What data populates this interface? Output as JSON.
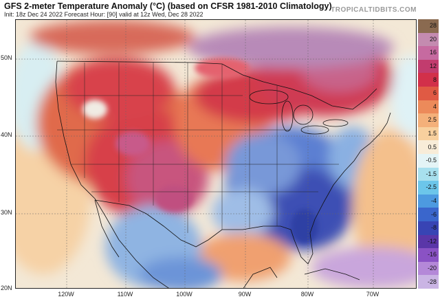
{
  "header": {
    "title": "GFS 2-meter Temperature Anomaly (°C) (based on CFSR 1981-2010 Climatology)",
    "subtitle": "Init: 18z Dec 24 2022   Forecast Hour: [90]   valid at 12z Wed, Dec 28 2022",
    "source": "TROPICALTIDBITS.COM"
  },
  "map": {
    "lat_labels": [
      "50N",
      "40N",
      "30N",
      "20N"
    ],
    "lon_labels": [
      "120W",
      "110W",
      "100W",
      "90W",
      "80W",
      "70W"
    ],
    "colors": {
      "deep_cold": "#3a4fb3",
      "cold": "#5f82d4",
      "cool": "#aac4ea",
      "neutral": "#f4efe4",
      "mild": "#f6c38f",
      "warm": "#ea7a52",
      "hot": "#d2364a",
      "very_hot": "#c2457a",
      "extreme": "#a06aa8"
    }
  },
  "colorbar": {
    "labels": [
      "28",
      "20",
      "16",
      "12",
      "8",
      "6",
      "4",
      "2.5",
      "1.5",
      "0.5",
      "-0.5",
      "-1.5",
      "-2.5",
      "-4",
      "-6",
      "-8",
      "-12",
      "-16",
      "-20",
      "-28"
    ],
    "colors": [
      "#8a6a50",
      "#c48bb0",
      "#c66aa0",
      "#c23c6e",
      "#d2304a",
      "#e05a44",
      "#ec8a5a",
      "#f4b07a",
      "#f8d09e",
      "#f8ecd8",
      "#e4f4f6",
      "#a8e0ee",
      "#6cc6ea",
      "#4d9ae0",
      "#3a66cc",
      "#3844b4",
      "#5a36a8",
      "#8a52c4",
      "#b488d8",
      "#cab4e4"
    ]
  }
}
